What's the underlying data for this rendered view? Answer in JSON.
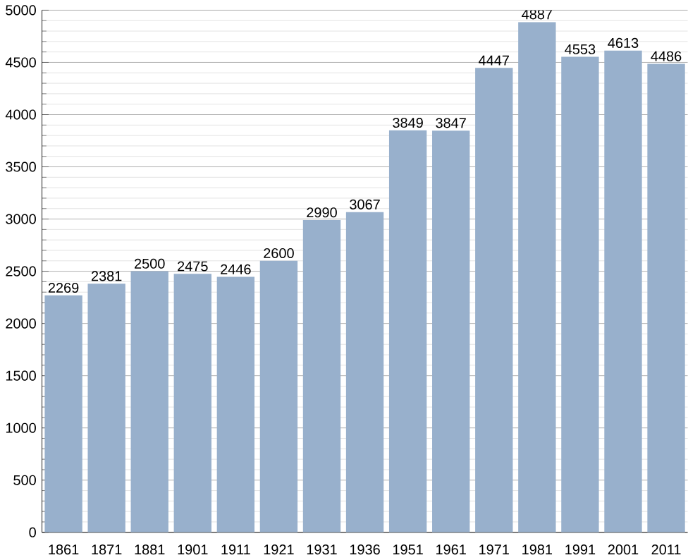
{
  "chart_data": {
    "type": "bar",
    "categories": [
      "1861",
      "1871",
      "1881",
      "1901",
      "1911",
      "1921",
      "1931",
      "1936",
      "1951",
      "1961",
      "1971",
      "1981",
      "1991",
      "2001",
      "2011"
    ],
    "values": [
      2269,
      2381,
      2500,
      2475,
      2446,
      2600,
      2990,
      3067,
      3849,
      3847,
      4447,
      4887,
      4553,
      4613,
      4486
    ],
    "color": "#98b0cc",
    "ylim": [
      0,
      5000
    ],
    "yticks": [
      0,
      500,
      1000,
      1500,
      2000,
      2500,
      3000,
      3500,
      4000,
      4500,
      5000
    ],
    "grid": "y",
    "data_labels": true
  }
}
